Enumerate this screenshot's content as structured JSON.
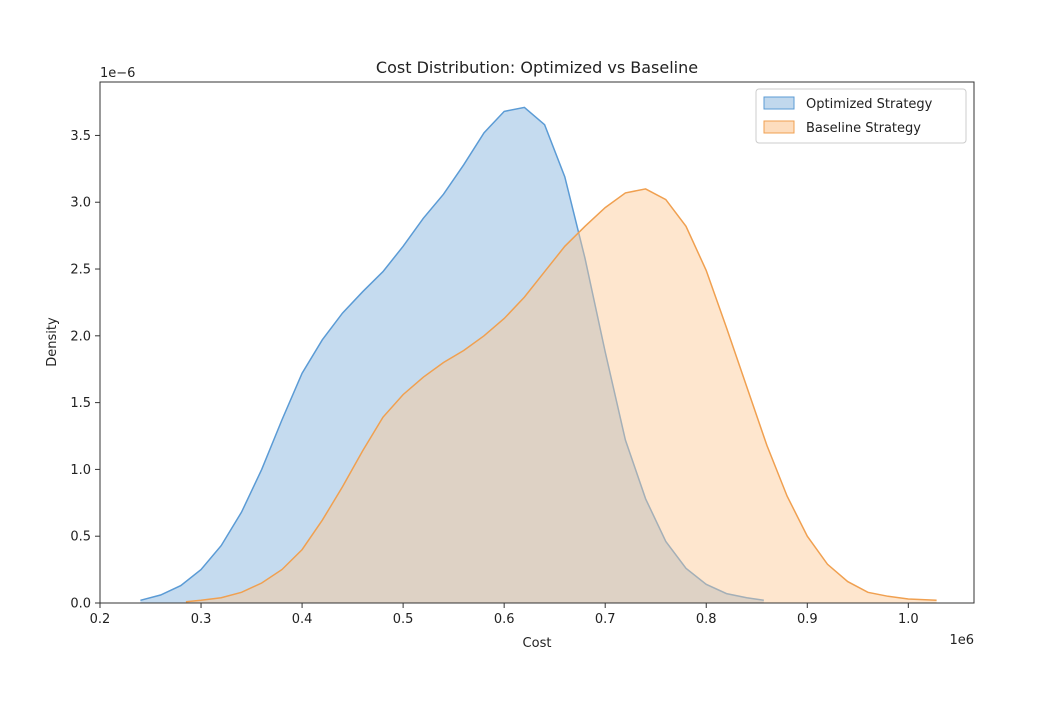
{
  "chart_data": {
    "type": "area",
    "title": "Cost Distribution: Optimized vs Baseline",
    "xlabel": "Cost",
    "ylabel": "Density",
    "x_scale_label": "1e6",
    "y_scale_label": "1e−6",
    "xlim": [
      0.2,
      1.065
    ],
    "ylim": [
      0,
      3.9
    ],
    "x_ticks": [
      "0.2",
      "0.3",
      "0.4",
      "0.5",
      "0.6",
      "0.7",
      "0.8",
      "0.9",
      "1.0"
    ],
    "y_ticks": [
      "0.0",
      "0.5",
      "1.0",
      "1.5",
      "2.0",
      "2.5",
      "3.0",
      "3.5"
    ],
    "grid": false,
    "legend_position": "top-right",
    "series": [
      {
        "name": "Optimized Strategy",
        "line_color": "#5b9bd5",
        "fill_color": "#a6c8e6",
        "x": [
          0.24,
          0.26,
          0.28,
          0.3,
          0.32,
          0.34,
          0.36,
          0.38,
          0.4,
          0.42,
          0.44,
          0.46,
          0.48,
          0.5,
          0.52,
          0.54,
          0.56,
          0.58,
          0.6,
          0.62,
          0.64,
          0.66,
          0.68,
          0.7,
          0.72,
          0.74,
          0.76,
          0.78,
          0.8,
          0.82,
          0.84,
          0.857
        ],
        "y": [
          0.02,
          0.06,
          0.13,
          0.25,
          0.43,
          0.68,
          1.0,
          1.37,
          1.72,
          1.97,
          2.17,
          2.33,
          2.48,
          2.67,
          2.88,
          3.06,
          3.28,
          3.52,
          3.68,
          3.71,
          3.58,
          3.19,
          2.58,
          1.88,
          1.22,
          0.78,
          0.46,
          0.26,
          0.14,
          0.07,
          0.04,
          0.02
        ]
      },
      {
        "name": "Baseline Strategy",
        "line_color": "#f0a050",
        "fill_color": "#fcc792",
        "x": [
          0.285,
          0.3,
          0.32,
          0.34,
          0.36,
          0.38,
          0.4,
          0.42,
          0.44,
          0.46,
          0.48,
          0.5,
          0.52,
          0.54,
          0.56,
          0.58,
          0.6,
          0.62,
          0.64,
          0.66,
          0.68,
          0.7,
          0.72,
          0.74,
          0.76,
          0.78,
          0.8,
          0.82,
          0.84,
          0.86,
          0.88,
          0.9,
          0.92,
          0.94,
          0.96,
          0.98,
          1.0,
          1.028
        ],
        "y": [
          0.01,
          0.02,
          0.04,
          0.08,
          0.15,
          0.25,
          0.4,
          0.62,
          0.87,
          1.14,
          1.39,
          1.56,
          1.69,
          1.8,
          1.89,
          2.0,
          2.13,
          2.29,
          2.48,
          2.67,
          2.82,
          2.96,
          3.07,
          3.1,
          3.02,
          2.82,
          2.49,
          2.06,
          1.62,
          1.18,
          0.8,
          0.5,
          0.29,
          0.16,
          0.08,
          0.05,
          0.03,
          0.02
        ]
      }
    ]
  }
}
